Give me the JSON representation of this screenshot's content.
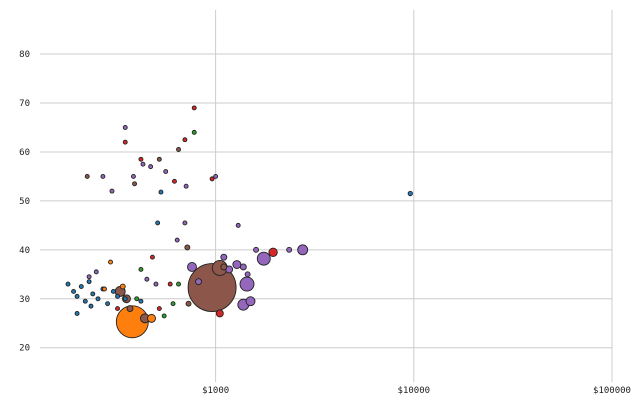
{
  "chart_data": {
    "type": "scatter",
    "title": "",
    "xlabel": "",
    "ylabel": "",
    "x_scale": "log",
    "xlim": [
      130,
      100000
    ],
    "ylim": [
      13,
      89
    ],
    "grid": true,
    "x_ticks": [
      {
        "value": 1000,
        "label": "$1000"
      },
      {
        "value": 10000,
        "label": "$10000"
      },
      {
        "value": 100000,
        "label": "$100000"
      }
    ],
    "y_ticks": [
      {
        "value": 20,
        "label": "20"
      },
      {
        "value": 30,
        "label": "30"
      },
      {
        "value": 40,
        "label": "40"
      },
      {
        "value": 50,
        "label": "50"
      },
      {
        "value": 60,
        "label": "60"
      },
      {
        "value": 70,
        "label": "70"
      },
      {
        "value": 80,
        "label": "80"
      }
    ],
    "series": [
      {
        "color": "#1f77b4",
        "points": [
          {
            "x": 180,
            "y": 33.0,
            "r": 2.0
          },
          {
            "x": 192,
            "y": 31.5,
            "r": 2.0
          },
          {
            "x": 200,
            "y": 30.5,
            "r": 2.0
          },
          {
            "x": 210,
            "y": 32.5,
            "r": 2.0
          },
          {
            "x": 220,
            "y": 29.5,
            "r": 2.0
          },
          {
            "x": 230,
            "y": 33.5,
            "r": 2.0
          },
          {
            "x": 240,
            "y": 31.0,
            "r": 2.0
          },
          {
            "x": 255,
            "y": 30.0,
            "r": 2.0
          },
          {
            "x": 270,
            "y": 32.0,
            "r": 2.0
          },
          {
            "x": 285,
            "y": 29.0,
            "r": 2.0
          },
          {
            "x": 200,
            "y": 27.0,
            "r": 2.0
          },
          {
            "x": 235,
            "y": 28.5,
            "r": 2.0
          },
          {
            "x": 305,
            "y": 31.5,
            "r": 2.0
          },
          {
            "x": 320,
            "y": 30.5,
            "r": 2.0
          },
          {
            "x": 350,
            "y": 30.0,
            "r": 2.0
          },
          {
            "x": 420,
            "y": 29.5,
            "r": 2.0
          },
          {
            "x": 530,
            "y": 51.8,
            "r": 2.0
          },
          {
            "x": 510,
            "y": 45.5,
            "r": 2.0
          },
          {
            "x": 9600,
            "y": 51.5,
            "r": 2.2
          }
        ]
      },
      {
        "color": "#ff7f0e",
        "points": [
          {
            "x": 380,
            "y": 25.3,
            "r": 16.0
          },
          {
            "x": 475,
            "y": 26.0,
            "r": 4.0
          },
          {
            "x": 275,
            "y": 32.0,
            "r": 2.0
          },
          {
            "x": 295,
            "y": 37.5,
            "r": 2.0
          },
          {
            "x": 340,
            "y": 32.5,
            "r": 2.5
          }
        ]
      },
      {
        "color": "#2ca02c",
        "points": [
          {
            "x": 780,
            "y": 64.0,
            "r": 2.0
          },
          {
            "x": 400,
            "y": 30.0,
            "r": 2.0
          },
          {
            "x": 610,
            "y": 29.0,
            "r": 2.0
          },
          {
            "x": 650,
            "y": 33.0,
            "r": 2.0
          },
          {
            "x": 550,
            "y": 26.5,
            "r": 2.0
          },
          {
            "x": 420,
            "y": 36.0,
            "r": 2.0
          }
        ]
      },
      {
        "color": "#d62728",
        "points": [
          {
            "x": 1050,
            "y": 27.0,
            "r": 3.5
          },
          {
            "x": 1950,
            "y": 39.5,
            "r": 4.2
          },
          {
            "x": 780,
            "y": 69.0,
            "r": 2.0
          },
          {
            "x": 350,
            "y": 62.0,
            "r": 2.0
          },
          {
            "x": 420,
            "y": 58.5,
            "r": 2.0
          },
          {
            "x": 700,
            "y": 62.5,
            "r": 2.0
          },
          {
            "x": 620,
            "y": 54.0,
            "r": 2.0
          },
          {
            "x": 960,
            "y": 54.5,
            "r": 2.0
          },
          {
            "x": 520,
            "y": 28.0,
            "r": 2.0
          },
          {
            "x": 590,
            "y": 33.0,
            "r": 2.0
          },
          {
            "x": 320,
            "y": 28.0,
            "r": 2.0
          },
          {
            "x": 480,
            "y": 38.5,
            "r": 2.0
          }
        ]
      },
      {
        "color": "#9467bd",
        "points": [
          {
            "x": 1440,
            "y": 33.0,
            "r": 7.0
          },
          {
            "x": 1380,
            "y": 28.8,
            "r": 5.5
          },
          {
            "x": 1750,
            "y": 38.2,
            "r": 6.5
          },
          {
            "x": 2750,
            "y": 40.0,
            "r": 5.0
          },
          {
            "x": 1500,
            "y": 29.5,
            "r": 4.5
          },
          {
            "x": 1280,
            "y": 37.0,
            "r": 4.0
          },
          {
            "x": 1170,
            "y": 36.0,
            "r": 3.5
          },
          {
            "x": 1380,
            "y": 36.5,
            "r": 3.0
          },
          {
            "x": 1100,
            "y": 38.5,
            "r": 3.0
          },
          {
            "x": 1450,
            "y": 35.0,
            "r": 2.5
          },
          {
            "x": 1600,
            "y": 40.0,
            "r": 2.5
          },
          {
            "x": 2350,
            "y": 40.0,
            "r": 2.5
          },
          {
            "x": 760,
            "y": 36.5,
            "r": 4.5
          },
          {
            "x": 820,
            "y": 33.5,
            "r": 3.0
          },
          {
            "x": 350,
            "y": 65.0,
            "r": 2.0
          },
          {
            "x": 270,
            "y": 55.0,
            "r": 2.0
          },
          {
            "x": 300,
            "y": 52.0,
            "r": 2.0
          },
          {
            "x": 385,
            "y": 55.0,
            "r": 2.0
          },
          {
            "x": 430,
            "y": 57.5,
            "r": 2.0
          },
          {
            "x": 470,
            "y": 57.0,
            "r": 2.0
          },
          {
            "x": 560,
            "y": 56.0,
            "r": 2.0
          },
          {
            "x": 710,
            "y": 53.0,
            "r": 2.0
          },
          {
            "x": 1000,
            "y": 55.0,
            "r": 2.0
          },
          {
            "x": 1300,
            "y": 45.0,
            "r": 2.0
          },
          {
            "x": 640,
            "y": 42.0,
            "r": 2.0
          },
          {
            "x": 700,
            "y": 45.5,
            "r": 2.0
          },
          {
            "x": 230,
            "y": 34.5,
            "r": 2.0
          },
          {
            "x": 250,
            "y": 35.5,
            "r": 2.0
          },
          {
            "x": 450,
            "y": 34.0,
            "r": 2.0
          },
          {
            "x": 500,
            "y": 33.0,
            "r": 2.0
          }
        ]
      },
      {
        "color": "#8c564b",
        "points": [
          {
            "x": 960,
            "y": 32.3,
            "r": 24.0
          },
          {
            "x": 1050,
            "y": 36.3,
            "r": 7.5
          },
          {
            "x": 330,
            "y": 31.5,
            "r": 5.0
          },
          {
            "x": 355,
            "y": 30.0,
            "r": 4.0
          },
          {
            "x": 440,
            "y": 26.0,
            "r": 4.5
          },
          {
            "x": 370,
            "y": 28.0,
            "r": 3.0
          },
          {
            "x": 730,
            "y": 29.0,
            "r": 2.5
          },
          {
            "x": 720,
            "y": 40.5,
            "r": 2.5
          },
          {
            "x": 1100,
            "y": 36.5,
            "r": 3.0
          },
          {
            "x": 225,
            "y": 55.0,
            "r": 2.0
          },
          {
            "x": 390,
            "y": 53.5,
            "r": 2.0
          },
          {
            "x": 520,
            "y": 58.5,
            "r": 2.0
          },
          {
            "x": 650,
            "y": 60.5,
            "r": 2.0
          }
        ]
      }
    ]
  }
}
